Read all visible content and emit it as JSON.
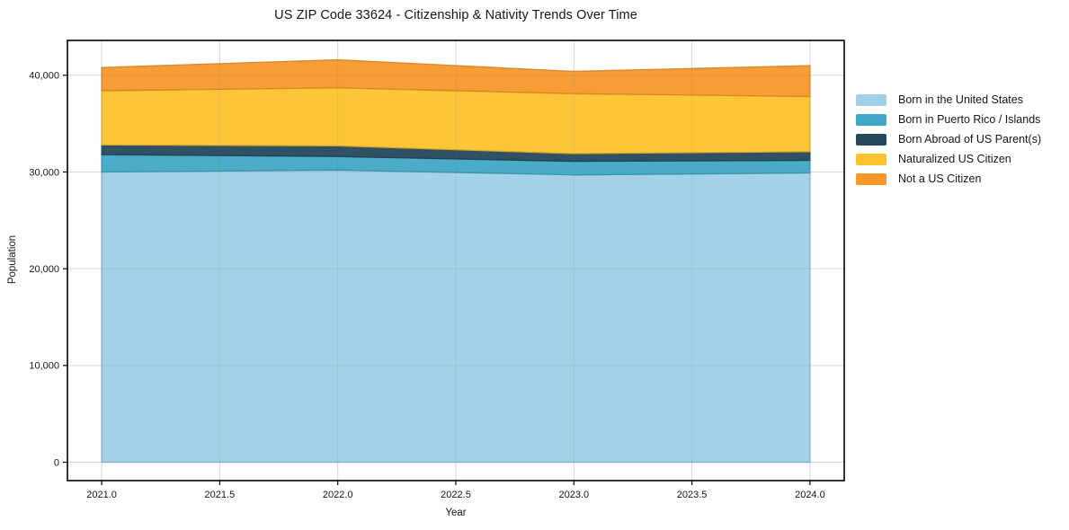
{
  "chart_data": {
    "type": "area",
    "stacked": true,
    "title": "US ZIP Code 33624 - Citizenship & Nativity Trends Over Time",
    "xlabel": "Year",
    "ylabel": "Population",
    "x": [
      2021,
      2022,
      2023,
      2024
    ],
    "series": [
      {
        "name": "Born in the United States",
        "color": "#9FD0E7",
        "values": [
          30000,
          30200,
          29700,
          29900
        ]
      },
      {
        "name": "Born in Puerto Rico / Islands",
        "color": "#40A8C6",
        "values": [
          1800,
          1400,
          1400,
          1300
        ]
      },
      {
        "name": "Born Abroad of US Parent(s)",
        "color": "#25485C",
        "values": [
          1000,
          1100,
          800,
          900
        ]
      },
      {
        "name": "Naturalized US Citizen",
        "color": "#FCC32D",
        "values": [
          5600,
          6000,
          6200,
          5700
        ]
      },
      {
        "name": "Not a US Citizen",
        "color": "#F7982B",
        "values": [
          2400,
          2900,
          2300,
          3200
        ]
      }
    ],
    "cumulative_totals": [
      40800,
      41600,
      40400,
      41000
    ],
    "x_ticks": [
      "2021.0",
      "2021.5",
      "2022.0",
      "2022.5",
      "2023.0",
      "2023.5",
      "2024.0"
    ],
    "x_tick_values": [
      2021,
      2021.5,
      2022,
      2022.5,
      2023,
      2023.5,
      2024
    ],
    "y_ticks": [
      "0",
      "10,000",
      "20,000",
      "30,000",
      "40,000"
    ],
    "y_tick_values": [
      0,
      10000,
      20000,
      30000,
      40000
    ],
    "xlim": [
      2020.855,
      2024.145
    ],
    "ylim": [
      -1900,
      43600
    ],
    "grid": true,
    "grid_color": "#e6e6e6",
    "spine_color": "#000000",
    "legend_position": "right-outside"
  }
}
